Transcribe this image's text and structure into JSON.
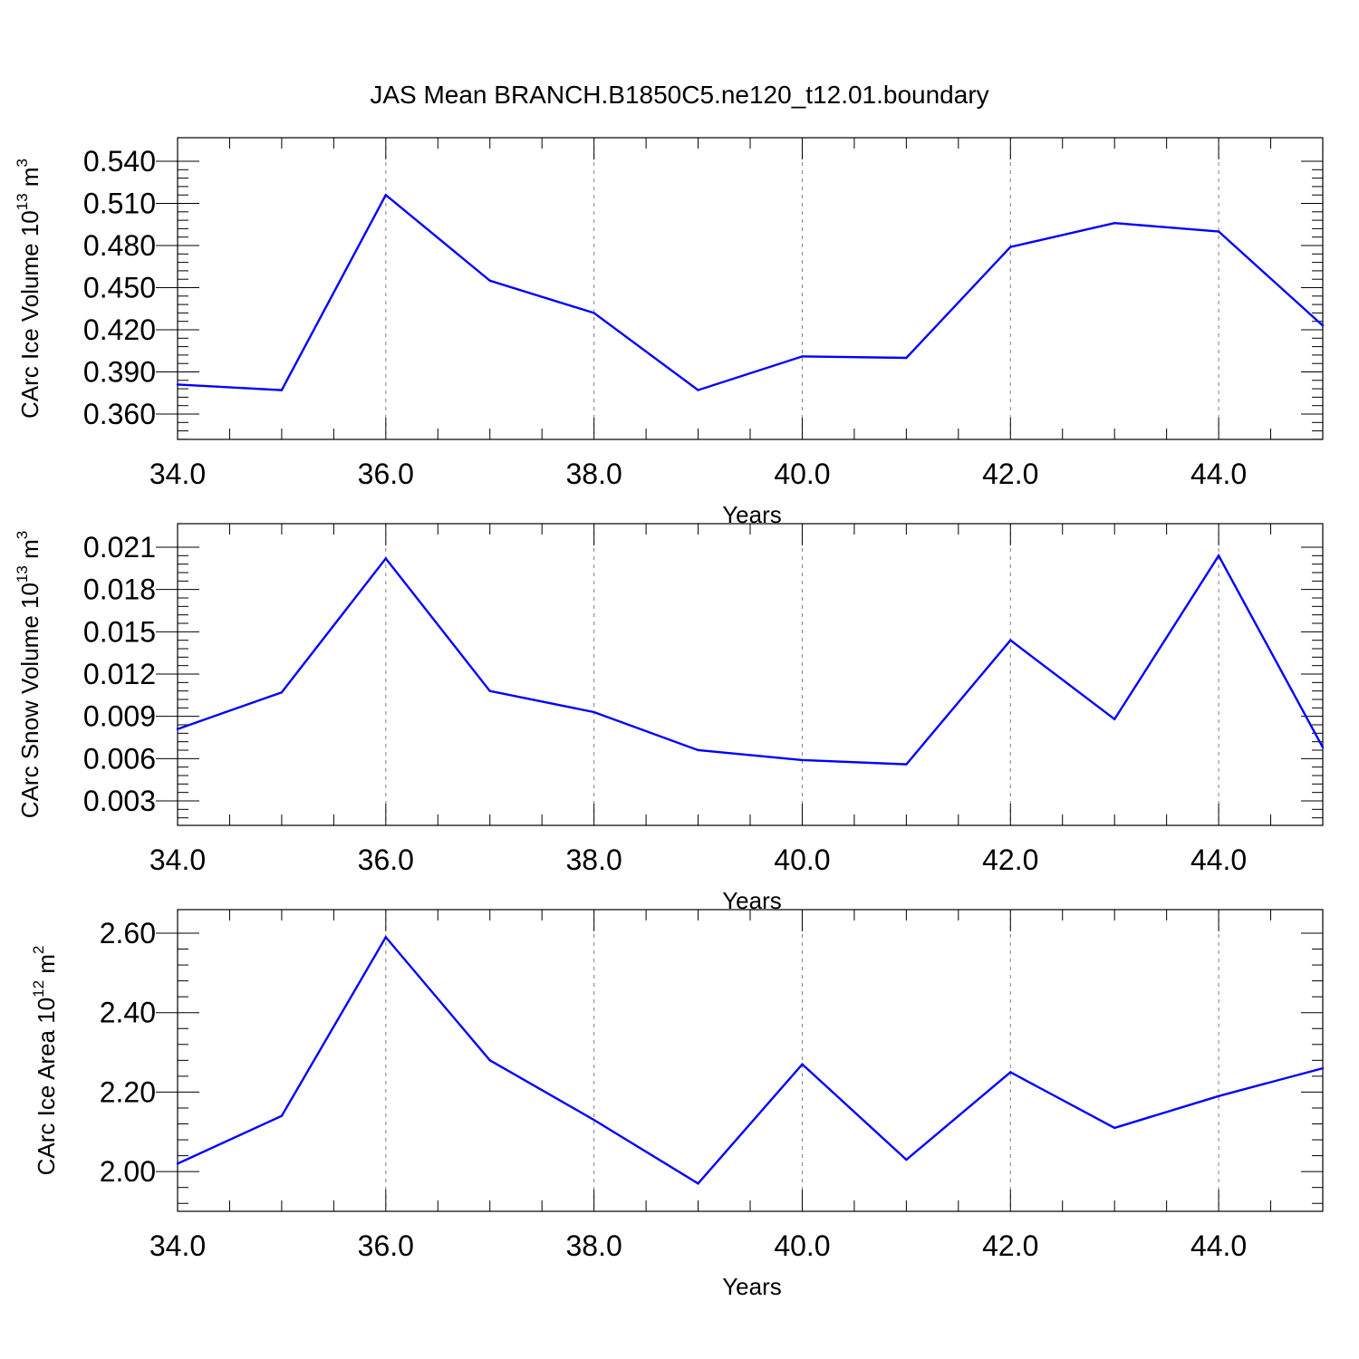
{
  "title": "JAS Mean BRANCH.B1850C5.ne120_t12.01.boundary",
  "colors": {
    "line": "#0000ff",
    "grid": "#808080",
    "axes": "#000000"
  },
  "chart_data": [
    {
      "type": "line",
      "title": "",
      "xlabel": "Years",
      "ylabel": {
        "prefix": "CArc Ice Volume 10",
        "exponent": "13",
        "unit": " m",
        "unit_exponent": "3"
      },
      "x": [
        34,
        35,
        36,
        37,
        38,
        39,
        40,
        41,
        42,
        43,
        44,
        45
      ],
      "series": [
        {
          "values": [
            0.381,
            0.377,
            0.516,
            0.455,
            0.432,
            0.377,
            0.401,
            0.4,
            0.479,
            0.496,
            0.49,
            0.423
          ]
        }
      ],
      "xlim": [
        34,
        45
      ],
      "ylim": [
        0.36,
        0.54
      ],
      "xticks": [
        "34.0",
        "36.0",
        "38.0",
        "40.0",
        "42.0",
        "44.0"
      ],
      "yticks": [
        "0.360",
        "0.390",
        "0.420",
        "0.450",
        "0.480",
        "0.510",
        "0.540"
      ],
      "grid": "vertical dashed at major x ticks",
      "legend": "none"
    },
    {
      "type": "line",
      "title": "",
      "xlabel": "Years",
      "ylabel": {
        "prefix": "CArc Snow Volume 10",
        "exponent": "13",
        "unit": " m",
        "unit_exponent": "3"
      },
      "x": [
        34,
        35,
        36,
        37,
        38,
        39,
        40,
        41,
        42,
        43,
        44,
        45
      ],
      "series": [
        {
          "values": [
            0.0081,
            0.0107,
            0.0202,
            0.0108,
            0.0093,
            0.0066,
            0.0059,
            0.0056,
            0.0144,
            0.0088,
            0.0204,
            0.0068
          ]
        }
      ],
      "xlim": [
        34,
        45
      ],
      "ylim": [
        0.003,
        0.021
      ],
      "xticks": [
        "34.0",
        "36.0",
        "38.0",
        "40.0",
        "42.0",
        "44.0"
      ],
      "yticks": [
        "0.003",
        "0.006",
        "0.009",
        "0.012",
        "0.015",
        "0.018",
        "0.021"
      ],
      "grid": "vertical dashed at major x ticks",
      "legend": "none"
    },
    {
      "type": "line",
      "title": "",
      "xlabel": "Years",
      "ylabel": {
        "prefix": "CArc Ice Area 10",
        "exponent": "12",
        "unit": " m",
        "unit_exponent": "2"
      },
      "x": [
        34,
        35,
        36,
        37,
        38,
        39,
        40,
        41,
        42,
        43,
        44,
        45
      ],
      "series": [
        {
          "values": [
            2.02,
            2.14,
            2.59,
            2.28,
            2.13,
            1.97,
            2.27,
            2.03,
            2.25,
            2.11,
            2.19,
            2.26
          ]
        }
      ],
      "xlim": [
        34,
        45
      ],
      "ylim": [
        1.9,
        2.6
      ],
      "xticks": [
        "34.0",
        "36.0",
        "38.0",
        "40.0",
        "42.0",
        "44.0"
      ],
      "yticks": [
        "2.00",
        "2.20",
        "2.40",
        "2.60"
      ],
      "grid": "vertical dashed at major x ticks",
      "legend": "none"
    }
  ]
}
